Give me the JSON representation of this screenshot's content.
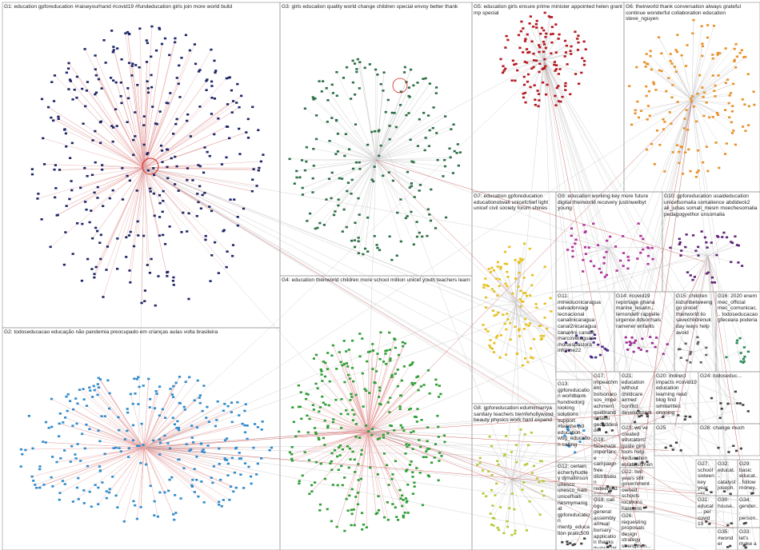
{
  "groups": [
    {
      "label": "G1: education gpforeducation #raiseyourhand #covid19 #fundeducation girls join more world build",
      "color": "#1c2566"
    },
    {
      "label": "G2: todoseducacao educação não pandemia preocupado em crianças aulas volta brasileira",
      "color": "#2f8bcc"
    },
    {
      "label": "G3: girls education quality world change children special envoy better thank",
      "color": "#2c6e45"
    },
    {
      "label": "G4: education theirworld children more school million unicef youth teachers learn",
      "color": "#2e9e35"
    },
    {
      "label": "G5: education girls ensure prime minister appointed helen grant mp special",
      "color": "#b3181f"
    },
    {
      "label": "G6: theirworld thank conversation always grateful continue wonderful collaboration education steve_nguyen",
      "color": "#e8922a"
    },
    {
      "label": "G7: education gpforeducation educationotwait unicefchief light unicef civil society forum shines",
      "color": "#e6c020"
    },
    {
      "label": "G8: gpforeducation edumimiarrya sanitary teachers bemfehollywood beauty physics work hard expand",
      "color": "#b8c93a"
    },
    {
      "label": "G9: education working key more future digital theirworld recovery justinwelbyt young",
      "color": "#b0329b"
    },
    {
      "label": "G10: gpforeducation usaideducation unicefsomalia somalience abdideck2 ali_jubas somali_mesm moechesomalia pedagogyethor unsomalia",
      "color": "#5e2374"
    },
    {
      "label": "G11: mineducnicaragua salvadorviagi tecnacional canalinicaragua canal2nicaragua canal4ni canal8 marcoveraguas moisespastora informe22",
      "color": "#4a2a86"
    },
    {
      "label": "G14: #covid19 reportage ghana marine_lesann... lemondefr rappelle urgence ddsormais ramener enfants",
      "color": "#9b2c97"
    },
    {
      "label": "G15: children kidsinbetweenggo unicef theirworld ilo savechildrenuk day ways help avoid",
      "color": "#666666"
    },
    {
      "label": "G16: 2020 enem mec_official mec_comunicac... todoseducacao gfeceara poderia",
      "color": "#2a8a5a"
    },
    {
      "label": "G13: gpforeducation worldbank hundredorg looking solutions support #teacherpd education wbg_education calling",
      "color": "#2f8bcc"
    },
    {
      "label": "G17: impeachment bolsonaro sos_impeachment quebrandootabu gedcddesider mildaninja todoseducacao felipeneto marcelosedmit jujuca1987",
      "color": "#444444"
    },
    {
      "label": "G21: education without childcare armed conflict development",
      "color": "#444444"
    },
    {
      "label": "G20: indirect impacts #covid19 education learning read blog find similarities ongoing",
      "color": "#444444"
    },
    {
      "label": "G24: todoseduc...",
      "color": "#444444"
    },
    {
      "label": "G23: we've created educators' guide girls tools help #education establishment",
      "color": "#444444"
    },
    {
      "label": "G25",
      "color": "#444444"
    },
    {
      "label": "G28: change much",
      "color": "#444444"
    },
    {
      "label": "G18: facemask importance campaign free distribution redeemed nursery primary school pupils",
      "color": "#444444"
    },
    {
      "label": "G12: certain echertyhudley djmallinson unesco unesco_haiti unicefhaiti nesmymanigat gpforeducation menfp_education pratic509",
      "color": "#444444"
    },
    {
      "label": "G22: two years still government owned schools locations happens",
      "color": "#444444"
    },
    {
      "label": "G27: school sixteen key year old relieved",
      "color": "#444444"
    },
    {
      "label": "G32: educat... catalyst joseph... achiev...",
      "color": "#444444"
    },
    {
      "label": "G29: basic educat... follow money...",
      "color": "#444444"
    },
    {
      "label": "G19: call ogu general assembly annual bursary application thanks thebigtable davidchundeyin",
      "color": "#444444"
    },
    {
      "label": "G26: requesting proposals design strategy strengthen...",
      "color": "#444444"
    },
    {
      "label": "G31: educat... per covid 19 gpfore...",
      "color": "#444444"
    },
    {
      "label": "G30: house...",
      "color": "#444444"
    },
    {
      "label": "G34: gender... person... presid...",
      "color": "#444444"
    },
    {
      "label": "G35: #wonder #they...",
      "color": "#444444"
    },
    {
      "label": "G33: let's make a differe...",
      "color": "#444444"
    }
  ]
}
